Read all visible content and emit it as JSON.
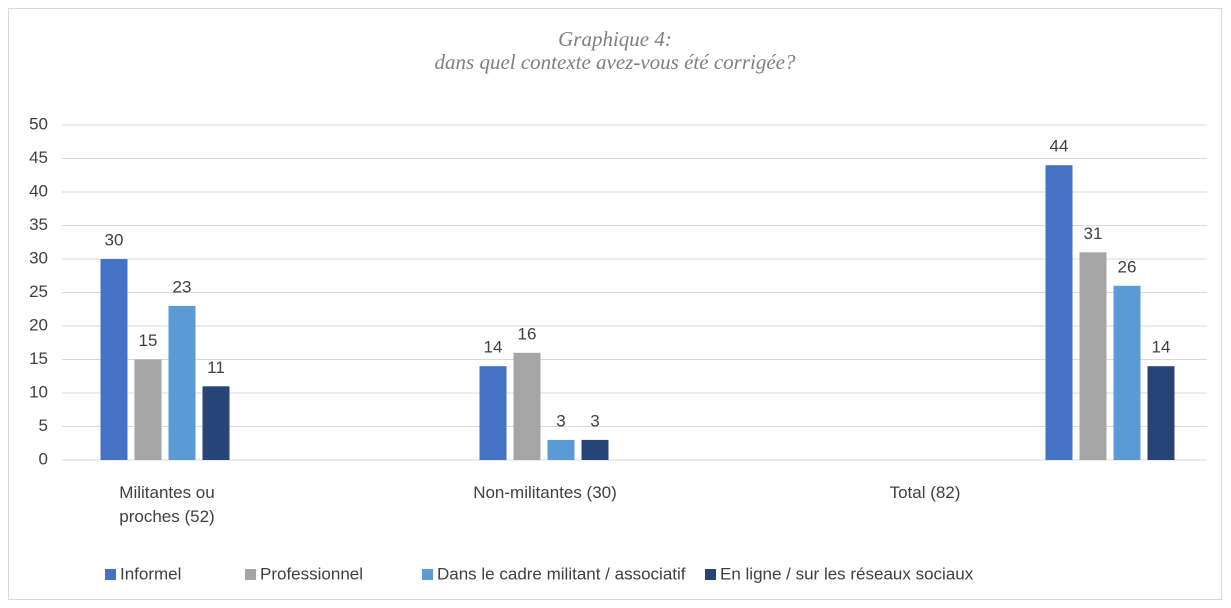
{
  "chart_data": {
    "type": "bar",
    "title": "Graphique 4:",
    "subtitle": "dans quel contexte avez-vous été corrigée?",
    "categories": [
      "Militantes ou proches (52)",
      "Non-militantes (30)",
      "Total (82)"
    ],
    "series": [
      {
        "name": "Informel",
        "color": "#4472c4",
        "values": [
          30,
          14,
          44
        ]
      },
      {
        "name": "Professionnel",
        "color": "#a5a5a5",
        "values": [
          15,
          16,
          31
        ]
      },
      {
        "name": "Dans le cadre militant / associatif",
        "color": "#5b9bd5",
        "values": [
          23,
          3,
          26
        ]
      },
      {
        "name": "En ligne / sur les réseaux sociaux",
        "color": "#264478",
        "values": [
          11,
          3,
          14
        ]
      }
    ],
    "ylim": [
      0,
      50
    ],
    "yticks": [
      0,
      5,
      10,
      15,
      20,
      25,
      30,
      35,
      40,
      45,
      50
    ],
    "grid": true,
    "legend": "bottom"
  }
}
